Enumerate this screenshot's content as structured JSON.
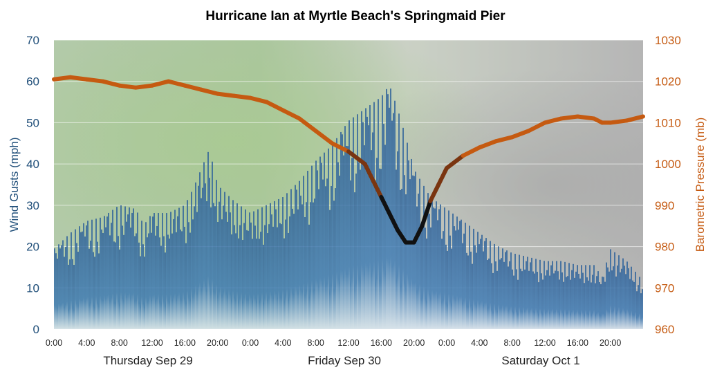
{
  "chart_data": {
    "type": "bar+line",
    "title": "Hurricane Ian at Myrtle Beach's Springmaid Pier",
    "y_left": {
      "label": "Wind Gusts (mph)",
      "range": [
        0,
        70
      ],
      "ticks": [
        "0",
        "10",
        "20",
        "30",
        "40",
        "50",
        "60",
        "70"
      ],
      "color": "#1f4e79"
    },
    "y_right": {
      "label": "Barometric Pressure (mb)",
      "range": [
        960,
        1030
      ],
      "ticks": [
        "960",
        "970",
        "980",
        "990",
        "1000",
        "1010",
        "1020",
        "1030"
      ],
      "color": "#c55a11"
    },
    "x": {
      "range_hours": [
        0,
        72
      ],
      "tick_labels": [
        "0:00",
        "4:00",
        "8:00",
        "12:00",
        "16:00",
        "20:00",
        "0:00",
        "4:00",
        "8:00",
        "12:00",
        "16:00",
        "20:00",
        "0:00",
        "4:00",
        "8:00",
        "12:00",
        "16:00",
        "20:00"
      ],
      "day_labels": [
        "Thursday Sep 29",
        "Friday Sep 30",
        "Saturday Oct 1"
      ]
    },
    "grid": true,
    "background": "satellite radar image",
    "series": [
      {
        "type": "bar",
        "color": "#2e6aa8",
        "points": [
          [
            0,
            20
          ],
          [
            2,
            24
          ],
          [
            4,
            27
          ],
          [
            6,
            28
          ],
          [
            8,
            31
          ],
          [
            10,
            30
          ],
          [
            11,
            26
          ],
          [
            12,
            29
          ],
          [
            14,
            29
          ],
          [
            16,
            31
          ],
          [
            17,
            35
          ],
          [
            18,
            40
          ],
          [
            19,
            45
          ],
          [
            20,
            36
          ],
          [
            22,
            32
          ],
          [
            24,
            29
          ],
          [
            26,
            31
          ],
          [
            28,
            33
          ],
          [
            30,
            37
          ],
          [
            32,
            42
          ],
          [
            34,
            46
          ],
          [
            36,
            52
          ],
          [
            38,
            55
          ],
          [
            40,
            58
          ],
          [
            41,
            61
          ],
          [
            42,
            55
          ],
          [
            43,
            48
          ],
          [
            44,
            40
          ],
          [
            46,
            33
          ],
          [
            48,
            30
          ],
          [
            50,
            27
          ],
          [
            52,
            24
          ],
          [
            54,
            21
          ],
          [
            56,
            19
          ],
          [
            58,
            18
          ],
          [
            60,
            17
          ],
          [
            62,
            17
          ],
          [
            64,
            16
          ],
          [
            66,
            16
          ],
          [
            67,
            13
          ],
          [
            68,
            20
          ],
          [
            70,
            17
          ],
          [
            72,
            12
          ]
        ]
      },
      {
        "type": "line",
        "color": "#c55a11",
        "low_pressure_color": "#111111",
        "points": [
          [
            0,
            1020.5
          ],
          [
            2,
            1021
          ],
          [
            4,
            1020.5
          ],
          [
            6,
            1020
          ],
          [
            8,
            1019
          ],
          [
            10,
            1018.5
          ],
          [
            12,
            1019
          ],
          [
            14,
            1020
          ],
          [
            16,
            1019
          ],
          [
            18,
            1018
          ],
          [
            20,
            1017
          ],
          [
            22,
            1016.5
          ],
          [
            24,
            1016
          ],
          [
            26,
            1015
          ],
          [
            28,
            1013
          ],
          [
            30,
            1011
          ],
          [
            32,
            1008
          ],
          [
            34,
            1005
          ],
          [
            36,
            1003
          ],
          [
            38,
            1000
          ],
          [
            39,
            996
          ],
          [
            40,
            992
          ],
          [
            41,
            988
          ],
          [
            42,
            984
          ],
          [
            43,
            981
          ],
          [
            44,
            981
          ],
          [
            45,
            985
          ],
          [
            46,
            991
          ],
          [
            47,
            995
          ],
          [
            48,
            999
          ],
          [
            50,
            1002
          ],
          [
            52,
            1004
          ],
          [
            54,
            1005.5
          ],
          [
            56,
            1006.5
          ],
          [
            58,
            1008
          ],
          [
            60,
            1010
          ],
          [
            62,
            1011
          ],
          [
            64,
            1011.5
          ],
          [
            66,
            1011
          ],
          [
            67,
            1010
          ],
          [
            68,
            1010
          ],
          [
            70,
            1010.5
          ],
          [
            72,
            1011.5
          ]
        ]
      }
    ]
  }
}
